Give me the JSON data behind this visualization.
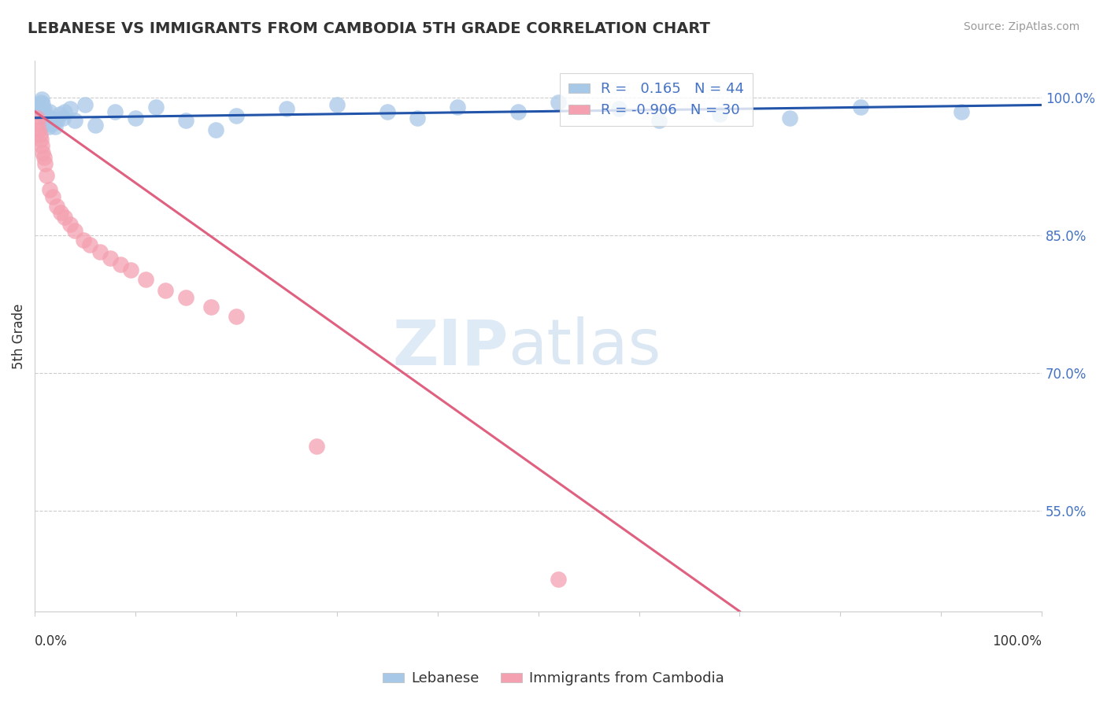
{
  "title": "LEBANESE VS IMMIGRANTS FROM CAMBODIA 5TH GRADE CORRELATION CHART",
  "source": "Source: ZipAtlas.com",
  "ylabel": "5th Grade",
  "ylabel_ticks": [
    "55.0%",
    "70.0%",
    "85.0%",
    "100.0%"
  ],
  "ylabel_tick_vals": [
    0.55,
    0.7,
    0.85,
    1.0
  ],
  "xlim": [
    0.0,
    1.0
  ],
  "ylim": [
    0.44,
    1.04
  ],
  "legend_label1": "Lebanese",
  "legend_label2": "Immigrants from Cambodia",
  "R1": 0.165,
  "N1": 44,
  "R2": -0.906,
  "N2": 30,
  "blue_color": "#A8C8E8",
  "pink_color": "#F4A0B0",
  "blue_line_color": "#2255AA",
  "pink_line_color": "#E06080",
  "blue_x": [
    0.002,
    0.003,
    0.004,
    0.005,
    0.006,
    0.007,
    0.008,
    0.009,
    0.01,
    0.011,
    0.012,
    0.013,
    0.014,
    0.015,
    0.016,
    0.018,
    0.02,
    0.022,
    0.025,
    0.028,
    0.03,
    0.035,
    0.04,
    0.05,
    0.06,
    0.08,
    0.1,
    0.12,
    0.15,
    0.18,
    0.2,
    0.25,
    0.3,
    0.35,
    0.38,
    0.42,
    0.48,
    0.52,
    0.58,
    0.62,
    0.68,
    0.75,
    0.82,
    0.92
  ],
  "blue_y": [
    0.99,
    0.985,
    0.992,
    0.988,
    0.995,
    0.998,
    0.993,
    0.987,
    0.982,
    0.978,
    0.975,
    0.972,
    0.968,
    0.985,
    0.978,
    0.972,
    0.968,
    0.975,
    0.982,
    0.978,
    0.985,
    0.988,
    0.975,
    0.992,
    0.97,
    0.985,
    0.978,
    0.99,
    0.975,
    0.965,
    0.98,
    0.988,
    0.992,
    0.985,
    0.978,
    0.99,
    0.985,
    0.995,
    0.988,
    0.975,
    0.982,
    0.978,
    0.99,
    0.985
  ],
  "pink_x": [
    0.002,
    0.003,
    0.004,
    0.005,
    0.006,
    0.007,
    0.008,
    0.009,
    0.01,
    0.012,
    0.015,
    0.018,
    0.022,
    0.026,
    0.03,
    0.035,
    0.04,
    0.048,
    0.055,
    0.065,
    0.075,
    0.085,
    0.095,
    0.11,
    0.13,
    0.15,
    0.175,
    0.2,
    0.28,
    0.52
  ],
  "pink_y": [
    0.978,
    0.972,
    0.965,
    0.96,
    0.955,
    0.948,
    0.94,
    0.935,
    0.928,
    0.915,
    0.9,
    0.892,
    0.882,
    0.875,
    0.87,
    0.862,
    0.855,
    0.845,
    0.84,
    0.832,
    0.825,
    0.818,
    0.812,
    0.802,
    0.79,
    0.782,
    0.772,
    0.762,
    0.62,
    0.475
  ],
  "blue_trend_x": [
    0.0,
    1.0
  ],
  "blue_trend_y": [
    0.978,
    0.992
  ],
  "pink_trend_x": [
    0.0,
    0.7
  ],
  "pink_trend_y": [
    0.985,
    0.44
  ],
  "watermark_zip": "ZIP",
  "watermark_atlas": "atlas",
  "grid_color": "#CCCCCC",
  "background_color": "#FFFFFF"
}
